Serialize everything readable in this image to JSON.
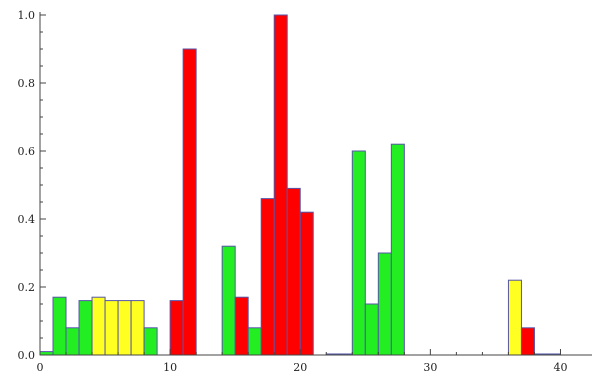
{
  "chart_data": {
    "type": "bar",
    "title": "",
    "xlabel": "",
    "ylabel": "",
    "xlim": [
      0,
      41.5
    ],
    "ylim": [
      0,
      1.0
    ],
    "x_ticks": [
      0,
      10,
      20,
      30,
      40
    ],
    "x_tick_labels": [
      "0",
      "10",
      "20",
      "30",
      "40"
    ],
    "y_ticks": [
      0,
      0.2,
      0.4,
      0.6,
      0.8,
      1.0
    ],
    "y_tick_labels": [
      "0.0",
      "0.2",
      "0.4",
      "0.6",
      "0.8",
      "1.0"
    ],
    "bin_width": 1,
    "grid": false,
    "legend": "none",
    "colors": {
      "green": "#22ee22",
      "yellow": "#ffff22",
      "red": "#ff0000",
      "edge": "#5555aa",
      "axis": "#444444"
    },
    "bars": [
      {
        "x": 0.5,
        "value": 0.01,
        "color": "green"
      },
      {
        "x": 1.5,
        "value": 0.17,
        "color": "green"
      },
      {
        "x": 2.5,
        "value": 0.08,
        "color": "green"
      },
      {
        "x": 3.5,
        "value": 0.16,
        "color": "green"
      },
      {
        "x": 4.5,
        "value": 0.17,
        "color": "yellow"
      },
      {
        "x": 5.5,
        "value": 0.16,
        "color": "yellow"
      },
      {
        "x": 6.5,
        "value": 0.16,
        "color": "yellow"
      },
      {
        "x": 7.5,
        "value": 0.16,
        "color": "yellow"
      },
      {
        "x": 8.5,
        "value": 0.08,
        "color": "green"
      },
      {
        "x": 10.5,
        "value": 0.16,
        "color": "red"
      },
      {
        "x": 11.5,
        "value": 0.9,
        "color": "red"
      },
      {
        "x": 14.5,
        "value": 0.32,
        "color": "green"
      },
      {
        "x": 15.5,
        "value": 0.17,
        "color": "red"
      },
      {
        "x": 16.5,
        "value": 0.08,
        "color": "green"
      },
      {
        "x": 17.5,
        "value": 0.46,
        "color": "red"
      },
      {
        "x": 18.5,
        "value": 1.0,
        "color": "red"
      },
      {
        "x": 19.5,
        "value": 0.49,
        "color": "red"
      },
      {
        "x": 20.5,
        "value": 0.42,
        "color": "red"
      },
      {
        "x": 22.5,
        "value": 0.003,
        "color": "green"
      },
      {
        "x": 23.5,
        "value": 0.003,
        "color": "green"
      },
      {
        "x": 24.5,
        "value": 0.6,
        "color": "green"
      },
      {
        "x": 25.5,
        "value": 0.15,
        "color": "green"
      },
      {
        "x": 26.5,
        "value": 0.3,
        "color": "green"
      },
      {
        "x": 27.5,
        "value": 0.62,
        "color": "green"
      },
      {
        "x": 36.5,
        "value": 0.22,
        "color": "yellow"
      },
      {
        "x": 37.5,
        "value": 0.08,
        "color": "red"
      },
      {
        "x": 38.5,
        "value": 0.003,
        "color": "green"
      },
      {
        "x": 39.5,
        "value": 0.003,
        "color": "green"
      }
    ]
  }
}
